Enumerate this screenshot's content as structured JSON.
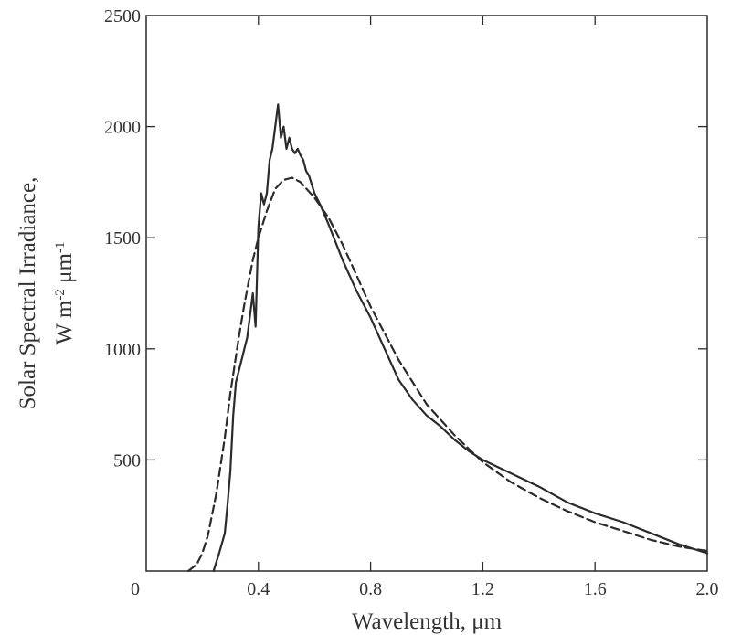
{
  "chart_data": {
    "type": "line",
    "xlabel": "Wavelength, μm",
    "ylabel_line1": "Solar Spectral Irradiance,",
    "ylabel_line2_parts": [
      "W m",
      "-2",
      " μm",
      "-1"
    ],
    "xlim": [
      0,
      2.0
    ],
    "ylim": [
      0,
      2500
    ],
    "x_ticks": [
      0,
      0.4,
      0.8,
      1.2,
      1.6,
      2.0
    ],
    "x_tick_labels": [
      "0",
      "0.4",
      "0.8",
      "1.2",
      "1.6",
      "2.0"
    ],
    "y_ticks": [
      500,
      1000,
      1500,
      2000,
      2500
    ],
    "y_tick_labels": [
      "500",
      "1000",
      "1500",
      "2000",
      "2500"
    ],
    "grid": false,
    "series": [
      {
        "style": "solid",
        "x": [
          0.24,
          0.26,
          0.28,
          0.29,
          0.3,
          0.31,
          0.32,
          0.33,
          0.34,
          0.35,
          0.36,
          0.37,
          0.38,
          0.39,
          0.4,
          0.41,
          0.42,
          0.43,
          0.44,
          0.45,
          0.46,
          0.47,
          0.48,
          0.49,
          0.5,
          0.51,
          0.52,
          0.53,
          0.54,
          0.55,
          0.56,
          0.57,
          0.58,
          0.6,
          0.62,
          0.65,
          0.7,
          0.75,
          0.8,
          0.85,
          0.9,
          0.95,
          1.0,
          1.05,
          1.1,
          1.15,
          1.2,
          1.3,
          1.4,
          1.5,
          1.6,
          1.7,
          1.8,
          1.9,
          2.0
        ],
        "y": [
          0,
          80,
          170,
          300,
          450,
          700,
          850,
          900,
          950,
          1000,
          1050,
          1150,
          1250,
          1100,
          1550,
          1700,
          1650,
          1700,
          1850,
          1900,
          2000,
          2100,
          1950,
          2000,
          1900,
          1950,
          1900,
          1880,
          1900,
          1870,
          1850,
          1800,
          1780,
          1700,
          1650,
          1560,
          1400,
          1260,
          1140,
          1000,
          860,
          770,
          700,
          650,
          590,
          540,
          500,
          440,
          380,
          310,
          260,
          220,
          170,
          120,
          80
        ]
      },
      {
        "style": "dashed",
        "x": [
          0.15,
          0.18,
          0.2,
          0.22,
          0.25,
          0.28,
          0.3,
          0.33,
          0.35,
          0.38,
          0.4,
          0.43,
          0.46,
          0.49,
          0.52,
          0.55,
          0.6,
          0.65,
          0.7,
          0.75,
          0.8,
          0.9,
          1.0,
          1.1,
          1.2,
          1.3,
          1.4,
          1.5,
          1.6,
          1.7,
          1.8,
          1.9,
          2.0
        ],
        "y": [
          0,
          30,
          80,
          160,
          350,
          600,
          800,
          1050,
          1200,
          1400,
          1500,
          1620,
          1720,
          1760,
          1770,
          1750,
          1680,
          1590,
          1470,
          1330,
          1190,
          950,
          750,
          610,
          490,
          400,
          330,
          270,
          220,
          180,
          140,
          110,
          90
        ]
      }
    ]
  }
}
